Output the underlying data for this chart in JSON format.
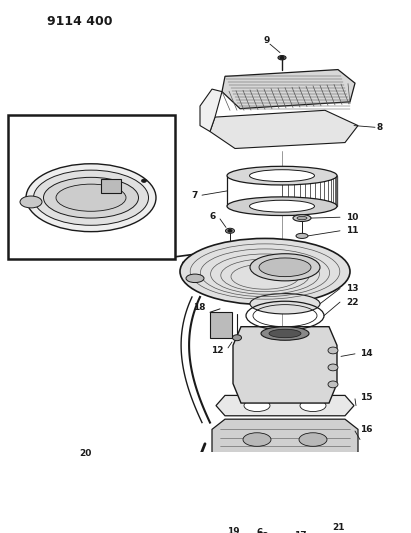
{
  "title_label": "9114 400",
  "bg_color": "#ffffff",
  "fig_width": 4.11,
  "fig_height": 5.33,
  "dpi": 100,
  "black": "#1a1a1a",
  "gray": "#888888",
  "light_gray": "#cccccc",
  "mid_gray": "#aaaaaa",
  "dark_gray": "#555555"
}
